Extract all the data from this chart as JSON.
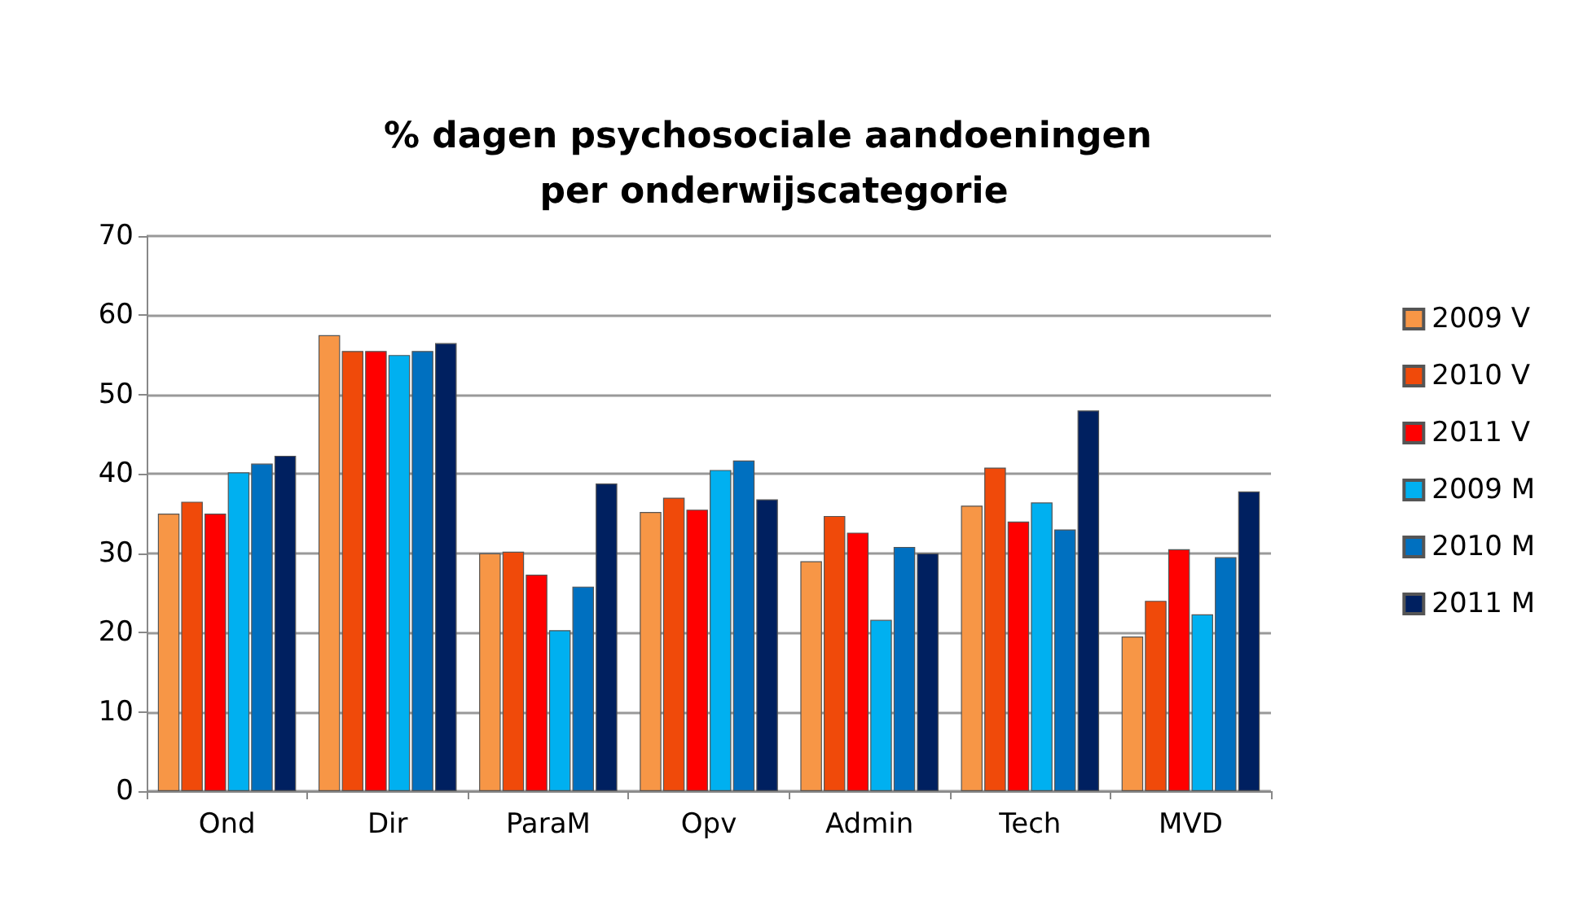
{
  "chart_data": {
    "type": "bar",
    "title": "% dagen psychosociale aandoeningen per onderwijscategorie",
    "categories": [
      "Ond",
      "Dir",
      "ParaM",
      "Opv",
      "Admin",
      "Tech",
      "MVD"
    ],
    "series": [
      {
        "name": "2009 V",
        "color": "#f79646",
        "values": [
          35,
          57.5,
          30,
          35.2,
          29,
          36,
          19.5
        ]
      },
      {
        "name": "2010 V",
        "color": "#f04a0a",
        "values": [
          36.5,
          55.5,
          30.2,
          37,
          34.7,
          40.8,
          24
        ]
      },
      {
        "name": "2011 V",
        "color": "#ff0000",
        "values": [
          35,
          55.5,
          27.3,
          35.5,
          32.6,
          34,
          30.5
        ]
      },
      {
        "name": "2009 M",
        "color": "#00b0f0",
        "values": [
          40.2,
          55,
          20.3,
          40.5,
          21.6,
          36.4,
          22.3
        ]
      },
      {
        "name": "2010 M",
        "color": "#0070c0",
        "values": [
          41.3,
          55.5,
          25.8,
          41.7,
          30.8,
          33,
          29.5
        ]
      },
      {
        "name": "2011 M",
        "color": "#002060",
        "values": [
          42.3,
          56.5,
          38.8,
          36.8,
          30,
          48,
          37.8
        ]
      }
    ],
    "ylim": [
      0,
      70
    ],
    "yticks": [
      0,
      10,
      20,
      30,
      40,
      50,
      60,
      70
    ],
    "grid": "y",
    "legend": "right"
  }
}
